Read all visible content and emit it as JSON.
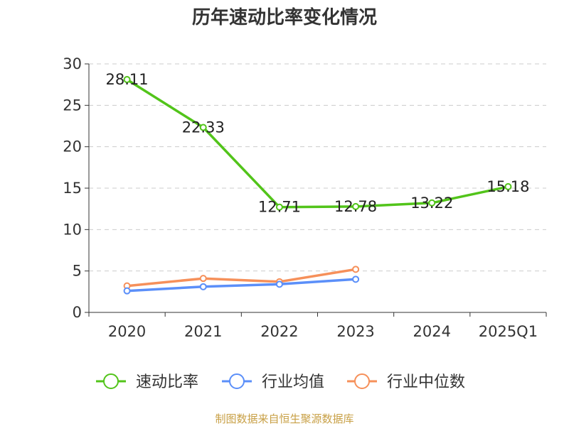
{
  "chart_data": {
    "type": "line",
    "title": "历年速动比率变化情况",
    "categories": [
      "2020",
      "2021",
      "2022",
      "2023",
      "2024",
      "2025Q1"
    ],
    "ylim": [
      0,
      30
    ],
    "yticks": [
      0,
      5,
      10,
      15,
      20,
      25,
      30
    ],
    "grid": true,
    "legend_position": "bottom",
    "series": [
      {
        "name": "速动比率",
        "color": "#52c41a",
        "values": [
          28.11,
          22.33,
          12.71,
          12.78,
          13.22,
          15.18
        ],
        "labels": [
          "28.11",
          "22.33",
          "12.71",
          "12.78",
          "13.22",
          "15.18"
        ]
      },
      {
        "name": "行业均值",
        "color": "#5b8ff9",
        "values": [
          2.6,
          3.1,
          3.4,
          4.0,
          null,
          null
        ]
      },
      {
        "name": "行业中位数",
        "color": "#f6905a",
        "values": [
          3.2,
          4.1,
          3.7,
          5.2,
          null,
          null
        ]
      }
    ]
  },
  "source": {
    "text": "制图数据来自恒生聚源数据库",
    "color": "#c8a046"
  }
}
